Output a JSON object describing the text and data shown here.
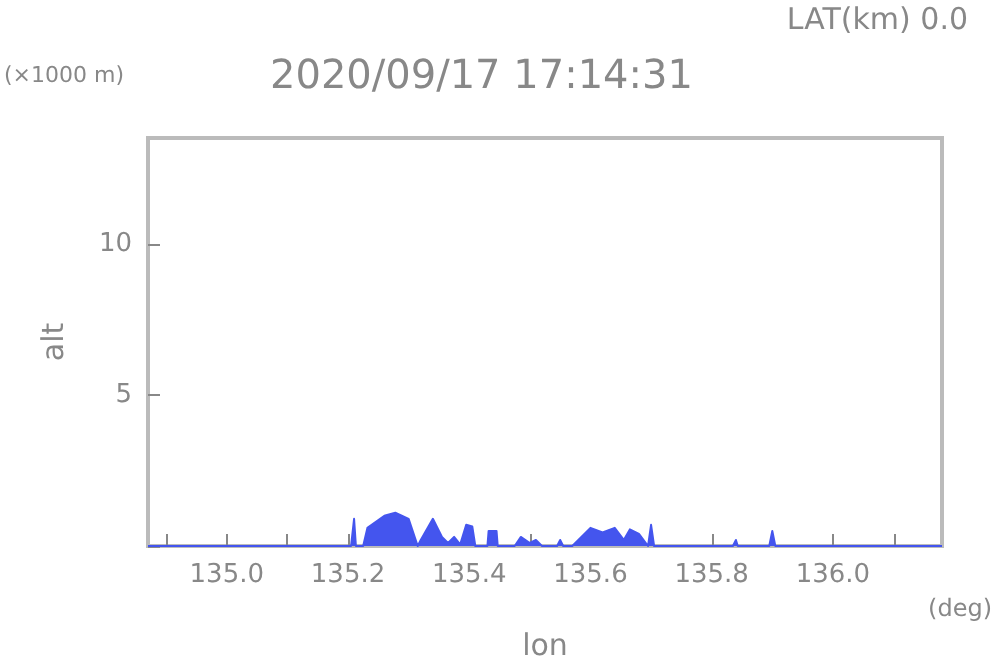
{
  "chart_data": {
    "type": "area",
    "title": "2020/09/17 17:14:31",
    "subtitle": "LAT(km) 0.0",
    "xlabel": "lon",
    "ylabel": "alt",
    "annotations": [
      "(×1000 m)",
      "(deg)"
    ],
    "xlim": [
      134.87,
      136.18
    ],
    "xticks": [
      {
        "value": 134.9,
        "label": null
      },
      {
        "value": 135.0,
        "label": "135.0"
      },
      {
        "value": 135.1,
        "label": null
      },
      {
        "value": 135.2,
        "label": "135.2"
      },
      {
        "value": 135.3,
        "label": null
      },
      {
        "value": 135.4,
        "label": "135.4"
      },
      {
        "value": 135.5,
        "label": null
      },
      {
        "value": 135.6,
        "label": "135.6"
      },
      {
        "value": 135.7,
        "label": null
      },
      {
        "value": 135.8,
        "label": "135.8"
      },
      {
        "value": 135.9,
        "label": null
      },
      {
        "value": 136.0,
        "label": "136.0"
      },
      {
        "value": 136.1,
        "label": null
      }
    ],
    "ylim": [
      0,
      13.5
    ],
    "yticks": [
      {
        "value": 0,
        "label": null
      },
      5,
      10
    ],
    "grid": false,
    "marker": "none",
    "series": [
      {
        "color": "#4455ee",
        "x": [
          134.87,
          135.205,
          135.21,
          135.213,
          135.225,
          135.232,
          135.26,
          135.278,
          135.3,
          135.315,
          135.32,
          135.34,
          135.355,
          135.365,
          135.375,
          135.385,
          135.395,
          135.405,
          135.41,
          135.43,
          135.432,
          135.445,
          135.447,
          135.475,
          135.485,
          135.5,
          135.51,
          135.52,
          135.545,
          135.55,
          135.555,
          135.57,
          135.59,
          135.6,
          135.62,
          135.64,
          135.655,
          135.665,
          135.68,
          135.695,
          135.7,
          135.705,
          135.835,
          135.84,
          135.843,
          135.895,
          135.9,
          135.905,
          136.18
        ],
        "values": [
          0,
          0,
          0.9,
          0,
          0,
          0.6,
          1.0,
          1.1,
          0.9,
          0,
          0.2,
          0.9,
          0.3,
          0.1,
          0.3,
          0.05,
          0.7,
          0.65,
          0,
          0,
          0.5,
          0.5,
          0,
          0,
          0.3,
          0.1,
          0.2,
          0,
          0,
          0.2,
          0,
          0,
          0.4,
          0.6,
          0.45,
          0.6,
          0.2,
          0.55,
          0.4,
          0,
          0.7,
          0,
          0,
          0.2,
          0,
          0,
          0.5,
          0,
          0
        ]
      }
    ]
  }
}
